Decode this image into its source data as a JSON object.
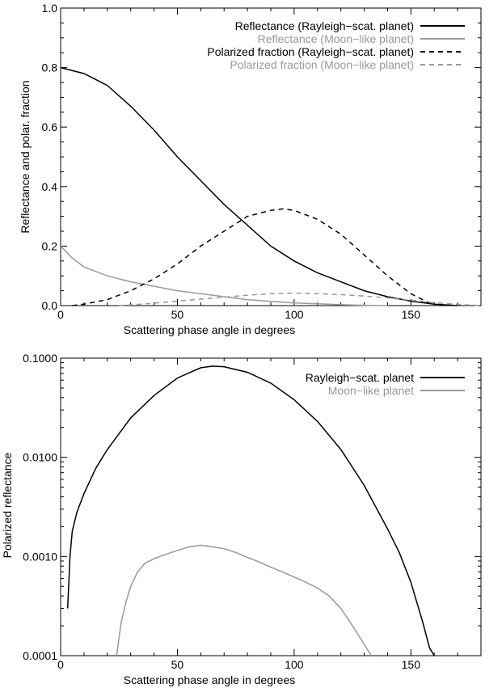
{
  "chart_data": [
    {
      "type": "line",
      "xlabel": "Scattering phase angle in degrees",
      "ylabel": "Reflectance and polar. fraction",
      "xlim": [
        0,
        180
      ],
      "ylim": [
        0,
        1.0
      ],
      "xticks": [
        0,
        50,
        100,
        150
      ],
      "xtick_labels": [
        "0",
        "50",
        "100",
        "150"
      ],
      "yticks": [
        0,
        0.2,
        0.4,
        0.6,
        0.8,
        1.0
      ],
      "ytick_labels": [
        "0.0",
        "0.2",
        "0.4",
        "0.6",
        "0.8",
        "1.0"
      ],
      "grid": false,
      "legend_position": "top-right",
      "series": [
        {
          "name": "Reflectance (Rayleigh−scat. planet)",
          "color": "#000000",
          "dash": "solid",
          "x": [
            0,
            10,
            20,
            30,
            40,
            50,
            60,
            70,
            80,
            90,
            100,
            110,
            120,
            130,
            140,
            150,
            160,
            170
          ],
          "y": [
            0.8,
            0.78,
            0.74,
            0.67,
            0.59,
            0.5,
            0.42,
            0.34,
            0.27,
            0.2,
            0.15,
            0.11,
            0.08,
            0.05,
            0.03,
            0.015,
            0.005,
            0.0
          ]
        },
        {
          "name": "Reflectance (Moon−like planet)",
          "color": "#999999",
          "dash": "solid",
          "x": [
            0,
            5,
            10,
            20,
            30,
            40,
            50,
            60,
            70,
            80,
            90,
            100,
            110,
            120,
            130,
            140
          ],
          "y": [
            0.2,
            0.16,
            0.13,
            0.1,
            0.08,
            0.065,
            0.05,
            0.04,
            0.03,
            0.02,
            0.014,
            0.009,
            0.006,
            0.003,
            0.001,
            0.0
          ]
        },
        {
          "name": "Polarized fraction (Rayleigh−scat. planet)",
          "color": "#000000",
          "dash": "dashed",
          "x": [
            5,
            10,
            20,
            30,
            40,
            50,
            60,
            70,
            80,
            90,
            95,
            100,
            110,
            120,
            130,
            140,
            150,
            160
          ],
          "y": [
            0.0,
            0.005,
            0.02,
            0.05,
            0.09,
            0.14,
            0.2,
            0.25,
            0.3,
            0.32,
            0.325,
            0.32,
            0.29,
            0.24,
            0.17,
            0.1,
            0.04,
            0.0
          ]
        },
        {
          "name": "Polarized fraction  (Moon−like planet)",
          "color": "#999999",
          "dash": "dashed",
          "x": [
            25,
            35,
            50,
            60,
            70,
            80,
            90,
            100,
            110,
            120,
            130,
            140,
            150,
            160,
            170,
            180
          ],
          "y": [
            0.0,
            0.005,
            0.015,
            0.022,
            0.028,
            0.035,
            0.04,
            0.042,
            0.04,
            0.037,
            0.032,
            0.026,
            0.018,
            0.01,
            0.004,
            0.0
          ]
        }
      ]
    },
    {
      "type": "line",
      "xlabel": "Scattering phase angle in degrees",
      "ylabel": "Polarized reflectance",
      "xlim": [
        0,
        180
      ],
      "ylim": [
        0.0001,
        0.1
      ],
      "yscale": "log",
      "xticks": [
        0,
        50,
        100,
        150
      ],
      "xtick_labels": [
        "0",
        "50",
        "100",
        "150"
      ],
      "yticks": [
        0.0001,
        0.001,
        0.01,
        0.1
      ],
      "ytick_labels": [
        "0.0001",
        "0.0010",
        "0.0100",
        "0.1000"
      ],
      "grid": false,
      "legend_position": "top-right",
      "series": [
        {
          "name": "Rayleigh−scat. planet",
          "color": "#000000",
          "dash": "solid",
          "x": [
            3,
            4,
            5,
            7,
            10,
            15,
            20,
            30,
            40,
            50,
            60,
            65,
            70,
            80,
            90,
            100,
            110,
            120,
            130,
            140,
            145,
            150,
            155,
            158,
            160
          ],
          "y": [
            0.0003,
            0.001,
            0.0018,
            0.0028,
            0.0043,
            0.0077,
            0.012,
            0.025,
            0.042,
            0.063,
            0.08,
            0.083,
            0.082,
            0.072,
            0.056,
            0.038,
            0.023,
            0.012,
            0.0052,
            0.0019,
            0.0011,
            0.00055,
            0.00022,
            0.00012,
            0.0001
          ]
        },
        {
          "name": "Moon−like planet",
          "color": "#999999",
          "dash": "solid",
          "x": [
            24,
            25,
            26,
            28,
            30,
            33,
            36,
            40,
            45,
            50,
            55,
            60,
            65,
            70,
            75,
            80,
            85,
            90,
            95,
            100,
            105,
            110,
            115,
            120,
            125,
            130,
            133
          ],
          "y": [
            0.0001,
            0.00015,
            0.00022,
            0.00035,
            0.0005,
            0.0007,
            0.00085,
            0.00095,
            0.00105,
            0.00115,
            0.00125,
            0.0013,
            0.00125,
            0.0012,
            0.0011,
            0.00098,
            0.00088,
            0.00078,
            0.0007,
            0.00062,
            0.00055,
            0.00048,
            0.0004,
            0.0003,
            0.0002,
            0.00013,
            0.0001
          ]
        }
      ]
    }
  ]
}
